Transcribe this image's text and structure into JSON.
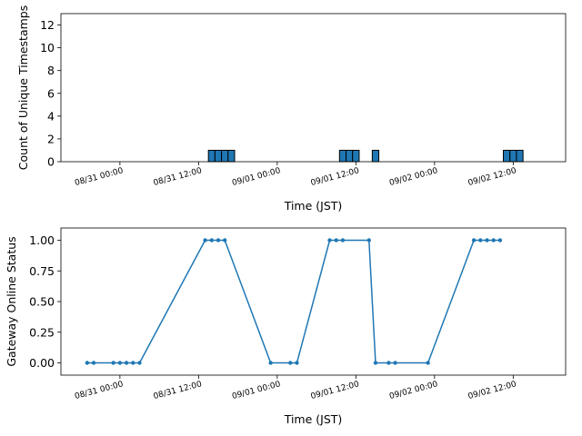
{
  "chart_data": [
    {
      "type": "bar",
      "xlabel": "Time (JST)",
      "ylabel": "Count of Unique Timestamps",
      "ylim": [
        0,
        13
      ],
      "yticks": [
        0,
        2,
        4,
        6,
        8,
        10,
        12
      ],
      "xticks": [
        "08/31 00:00",
        "08/31 12:00",
        "09/01 00:00",
        "09/01 12:00",
        "09/02 00:00",
        "09/02 12:00"
      ],
      "xlim": [
        "08/30 15:00",
        "09/02 20:00"
      ],
      "bar_color": "#1f77b4",
      "bar_edge_color": "#000000",
      "bar_width_hours": 1,
      "x": [
        "08/31 14:00",
        "08/31 15:00",
        "08/31 16:00",
        "08/31 17:00",
        "09/01 10:00",
        "09/01 11:00",
        "09/01 12:00",
        "09/01 15:00",
        "09/02 11:00",
        "09/02 12:00",
        "09/02 13:00"
      ],
      "values": [
        1,
        1,
        1,
        1,
        1,
        1,
        1,
        1,
        1,
        1,
        1
      ]
    },
    {
      "type": "line",
      "xlabel": "Time (JST)",
      "ylabel": "Gateway Online Status",
      "ylim": [
        -0.1,
        1.1
      ],
      "yticks": [
        "0.00",
        "0.25",
        "0.50",
        "0.75",
        "1.00"
      ],
      "xticks": [
        "08/31 00:00",
        "08/31 12:00",
        "09/01 00:00",
        "09/01 12:00",
        "09/02 00:00",
        "09/02 12:00"
      ],
      "xlim": [
        "08/30 15:00",
        "09/02 20:00"
      ],
      "line_color": "#1f77b4",
      "marker": "circle",
      "x": [
        "08/30 19:00",
        "08/30 20:00",
        "08/30 23:00",
        "08/31 00:00",
        "08/31 01:00",
        "08/31 02:00",
        "08/31 03:00",
        "08/31 13:00",
        "08/31 14:00",
        "08/31 15:00",
        "08/31 16:00",
        "08/31 23:00",
        "09/01 02:00",
        "09/01 03:00",
        "09/01 08:00",
        "09/01 09:00",
        "09/01 10:00",
        "09/01 14:00",
        "09/01 15:00",
        "09/01 17:00",
        "09/01 18:00",
        "09/01 23:00",
        "09/02 06:00",
        "09/02 07:00",
        "09/02 08:00",
        "09/02 09:00",
        "09/02 10:00"
      ],
      "values": [
        0,
        0,
        0,
        0,
        0,
        0,
        0,
        1,
        1,
        1,
        1,
        0,
        0,
        0,
        1,
        1,
        1,
        1,
        0,
        0,
        0,
        0,
        1,
        1,
        1,
        1,
        1
      ]
    }
  ]
}
